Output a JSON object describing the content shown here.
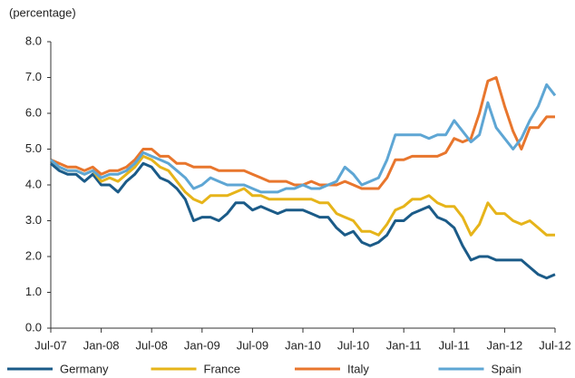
{
  "chart_data": {
    "type": "line",
    "ylabel": "(percentage)",
    "categories": [
      "Jul-07",
      null,
      null,
      null,
      null,
      null,
      "Jan-08",
      null,
      null,
      null,
      null,
      null,
      "Jul-08",
      null,
      null,
      null,
      null,
      null,
      "Jan-09",
      null,
      null,
      null,
      null,
      null,
      "Jul-09",
      null,
      null,
      null,
      null,
      null,
      "Jan-10",
      null,
      null,
      null,
      null,
      null,
      "Jul-10",
      null,
      null,
      null,
      null,
      null,
      "Jan-11",
      null,
      null,
      null,
      null,
      null,
      "Jul-11",
      null,
      null,
      null,
      null,
      null,
      "Jan-12",
      null,
      null,
      null,
      null,
      null,
      "Jul-12"
    ],
    "series": [
      {
        "name": "Germany",
        "color": "#1b5b88",
        "values": [
          4.6,
          4.4,
          4.3,
          4.3,
          4.1,
          4.3,
          4.0,
          4.0,
          3.8,
          4.1,
          4.3,
          4.6,
          4.5,
          4.2,
          4.1,
          3.9,
          3.6,
          3.0,
          3.1,
          3.1,
          3.0,
          3.2,
          3.5,
          3.5,
          3.3,
          3.4,
          3.3,
          3.2,
          3.3,
          3.3,
          3.3,
          3.2,
          3.1,
          3.1,
          2.8,
          2.6,
          2.7,
          2.4,
          2.3,
          2.4,
          2.6,
          3.0,
          3.0,
          3.2,
          3.3,
          3.4,
          3.1,
          3.0,
          2.8,
          2.3,
          1.9,
          2.0,
          2.0,
          1.9,
          1.9,
          1.9,
          1.9,
          1.7,
          1.5,
          1.4,
          1.5
        ]
      },
      {
        "name": "France",
        "color": "#e6b41a",
        "values": [
          4.7,
          4.5,
          4.4,
          4.4,
          4.3,
          4.4,
          4.1,
          4.2,
          4.1,
          4.3,
          4.5,
          4.8,
          4.7,
          4.5,
          4.4,
          4.1,
          3.8,
          3.6,
          3.5,
          3.7,
          3.7,
          3.7,
          3.8,
          3.9,
          3.7,
          3.7,
          3.6,
          3.6,
          3.6,
          3.6,
          3.6,
          3.6,
          3.5,
          3.5,
          3.2,
          3.1,
          3.0,
          2.7,
          2.7,
          2.6,
          2.9,
          3.3,
          3.4,
          3.6,
          3.6,
          3.7,
          3.5,
          3.4,
          3.4,
          3.1,
          2.6,
          2.9,
          3.5,
          3.2,
          3.2,
          3.0,
          2.9,
          3.0,
          2.8,
          2.6,
          2.6
        ]
      },
      {
        "name": "Italy",
        "color": "#e8762d",
        "values": [
          4.7,
          4.6,
          4.5,
          4.5,
          4.4,
          4.5,
          4.3,
          4.4,
          4.4,
          4.5,
          4.7,
          5.0,
          5.0,
          4.8,
          4.8,
          4.6,
          4.6,
          4.5,
          4.5,
          4.5,
          4.4,
          4.4,
          4.4,
          4.4,
          4.3,
          4.2,
          4.1,
          4.1,
          4.1,
          4.0,
          4.0,
          4.1,
          4.0,
          4.0,
          4.0,
          4.1,
          4.0,
          3.9,
          3.9,
          3.9,
          4.2,
          4.7,
          4.7,
          4.8,
          4.8,
          4.8,
          4.8,
          4.9,
          5.3,
          5.2,
          5.3,
          6.0,
          6.9,
          7.0,
          6.2,
          5.5,
          5.0,
          5.6,
          5.6,
          5.9,
          5.9
        ]
      },
      {
        "name": "Spain",
        "color": "#5ea6d4",
        "values": [
          4.7,
          4.5,
          4.4,
          4.4,
          4.3,
          4.4,
          4.2,
          4.3,
          4.3,
          4.4,
          4.6,
          4.9,
          4.8,
          4.7,
          4.6,
          4.4,
          4.2,
          3.9,
          4.0,
          4.2,
          4.1,
          4.0,
          4.0,
          4.0,
          3.9,
          3.8,
          3.8,
          3.8,
          3.9,
          3.9,
          4.0,
          3.9,
          3.9,
          4.0,
          4.1,
          4.5,
          4.3,
          4.0,
          4.1,
          4.2,
          4.7,
          5.4,
          5.4,
          5.4,
          5.4,
          5.3,
          5.4,
          5.4,
          5.8,
          5.5,
          5.2,
          5.4,
          6.3,
          5.6,
          5.3,
          5.0,
          5.3,
          5.8,
          6.2,
          6.8,
          6.5
        ]
      }
    ],
    "ylim": [
      0,
      8
    ],
    "yticks": [
      {
        "value": 0,
        "label": "0.0"
      },
      {
        "value": 1,
        "label": "1.0"
      },
      {
        "value": 2,
        "label": "2.0"
      },
      {
        "value": 3,
        "label": "3.0"
      },
      {
        "value": 4,
        "label": "4.0"
      },
      {
        "value": 5,
        "label": "5.0"
      },
      {
        "value": 6,
        "label": "6.0"
      },
      {
        "value": 7,
        "label": "7.0"
      },
      {
        "value": 8,
        "label": "8.0"
      }
    ],
    "grid": false
  }
}
